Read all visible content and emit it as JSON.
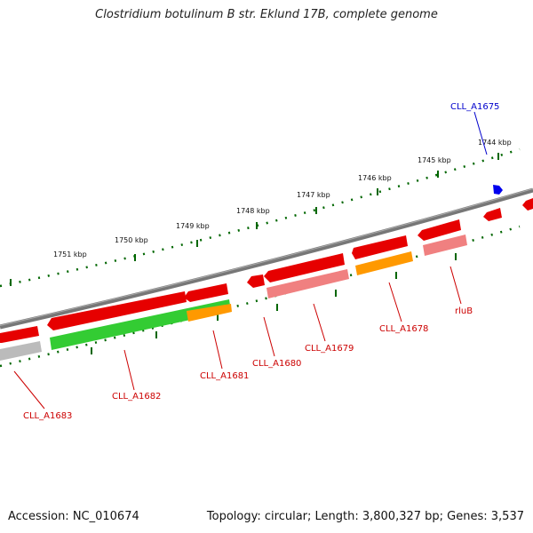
{
  "title": "Clostridium botulinum B str. Eklund 17B, complete genome",
  "footer": {
    "accession": "Accession: NC_010674",
    "topology": "Topology: circular; Length: 3,800,327 bp; Genes: 3,537"
  },
  "ruler": {
    "ticks": [
      "1744 kbp",
      "1745 kbp",
      "1746 kbp",
      "1747 kbp",
      "1748 kbp",
      "1749 kbp",
      "1750 kbp",
      "1751 kbp"
    ]
  },
  "genes": [
    {
      "name": "CLL_A1675",
      "color": "#0000cc"
    },
    {
      "name": "rluB",
      "color": "#cc0000"
    },
    {
      "name": "CLL_A1678",
      "color": "#cc0000"
    },
    {
      "name": "CLL_A1679",
      "color": "#cc0000"
    },
    {
      "name": "CLL_A1680",
      "color": "#cc0000"
    },
    {
      "name": "CLL_A1681",
      "color": "#cc0000"
    },
    {
      "name": "CLL_A1682",
      "color": "#cc0000"
    },
    {
      "name": "CLL_A1683",
      "color": "#cc0000"
    }
  ],
  "colors": {
    "cds": "#e60000",
    "cds_pink": "#f08080",
    "gene_green": "#33cc33",
    "gene_orange": "#ff9900",
    "gene_gray": "#bbbbbb",
    "blue_feature": "#0000ee",
    "backbone": "#777777",
    "tick_green": "#006600"
  }
}
